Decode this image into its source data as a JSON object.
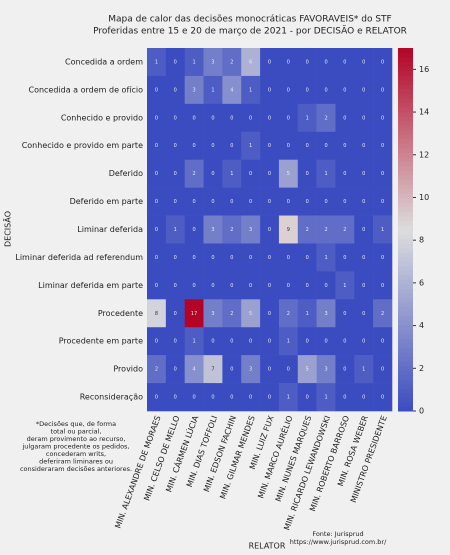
{
  "chart_data": {
    "type": "heatmap",
    "title": [
      "Mapa de calor das decisões monocráticas FAVORAVEIS* do STF",
      "Proferidas entre 15 e 20 de março de 2021 - por DECISÃO e RELATOR"
    ],
    "x_label": "RELATOR",
    "y_label": "DECISÃO",
    "x": [
      "MIN. ALEXANDRE DE MORAES",
      "MIN. CELSO DE MELLO",
      "MIN. CÁRMEN LÚCIA",
      "MIN. DIAS TOFFOLI",
      "MIN. EDSON FACHIN",
      "MIN. GILMAR MENDES",
      "MIN. LUIZ FUX",
      "MIN. MARCO AURÉLIO",
      "MIN. NUNES MARQUES",
      "MIN. RICARDO LEWANDOWSKI",
      "MIN. ROBERTO BARROSO",
      "MIN. ROSA WEBER",
      "MINISTRO PRESIDENTE"
    ],
    "y": [
      "Concedida a ordem",
      "Concedida a ordem de ofício",
      "Conhecido e provido",
      "Conhecido e provido em parte",
      "Deferido",
      "Deferido em parte",
      "Liminar deferida",
      "Liminar deferida ad referendum",
      "Liminar deferida em parte",
      "Procedente",
      "Procedente em parte",
      "Provido",
      "Reconsideração"
    ],
    "values": [
      [
        1,
        0,
        1,
        3,
        2,
        6,
        0,
        0,
        0,
        0,
        0,
        0,
        0
      ],
      [
        0,
        0,
        3,
        1,
        4,
        1,
        0,
        0,
        0,
        0,
        0,
        0,
        0
      ],
      [
        0,
        0,
        0,
        0,
        0,
        0,
        0,
        0,
        1,
        2,
        0,
        0,
        0
      ],
      [
        0,
        0,
        0,
        0,
        0,
        1,
        0,
        0,
        0,
        0,
        0,
        0,
        0
      ],
      [
        0,
        0,
        2,
        0,
        1,
        0,
        0,
        5,
        0,
        1,
        0,
        0,
        0
      ],
      [
        0,
        0,
        0,
        0,
        0,
        0,
        0,
        0,
        0,
        0,
        0,
        0,
        0
      ],
      [
        0,
        1,
        0,
        3,
        2,
        3,
        0,
        9,
        2,
        2,
        2,
        0,
        1
      ],
      [
        0,
        0,
        0,
        0,
        0,
        0,
        0,
        0,
        0,
        1,
        0,
        0,
        0
      ],
      [
        0,
        0,
        0,
        0,
        0,
        0,
        0,
        0,
        0,
        0,
        1,
        0,
        0
      ],
      [
        8,
        0,
        17,
        3,
        2,
        5,
        0,
        2,
        1,
        3,
        0,
        0,
        2
      ],
      [
        0,
        0,
        1,
        0,
        0,
        0,
        0,
        1,
        0,
        0,
        0,
        0,
        0
      ],
      [
        2,
        0,
        4,
        7,
        0,
        3,
        0,
        0,
        5,
        3,
        0,
        1,
        0
      ],
      [
        0,
        0,
        0,
        0,
        0,
        0,
        0,
        1,
        0,
        1,
        0,
        0,
        0
      ]
    ],
    "colors": [
      "#3b4cc0",
      "#dddddd",
      "#b40426"
    ],
    "zlim": [
      0,
      17
    ],
    "zticks": [
      0,
      2,
      4,
      6,
      8,
      10,
      12,
      14,
      16
    ],
    "footnote": [
      "*Decisões que, de forma",
      "total ou parcial,",
      "deram provimento ao recurso,",
      "julgaram procedente os pedidos,",
      "concederam writs,",
      "deferiram liminares ou",
      "consideraram decisões anteriores."
    ],
    "source": [
      "Fonte: Jurisprud",
      "https://www.jurisprud.com.br/"
    ]
  }
}
